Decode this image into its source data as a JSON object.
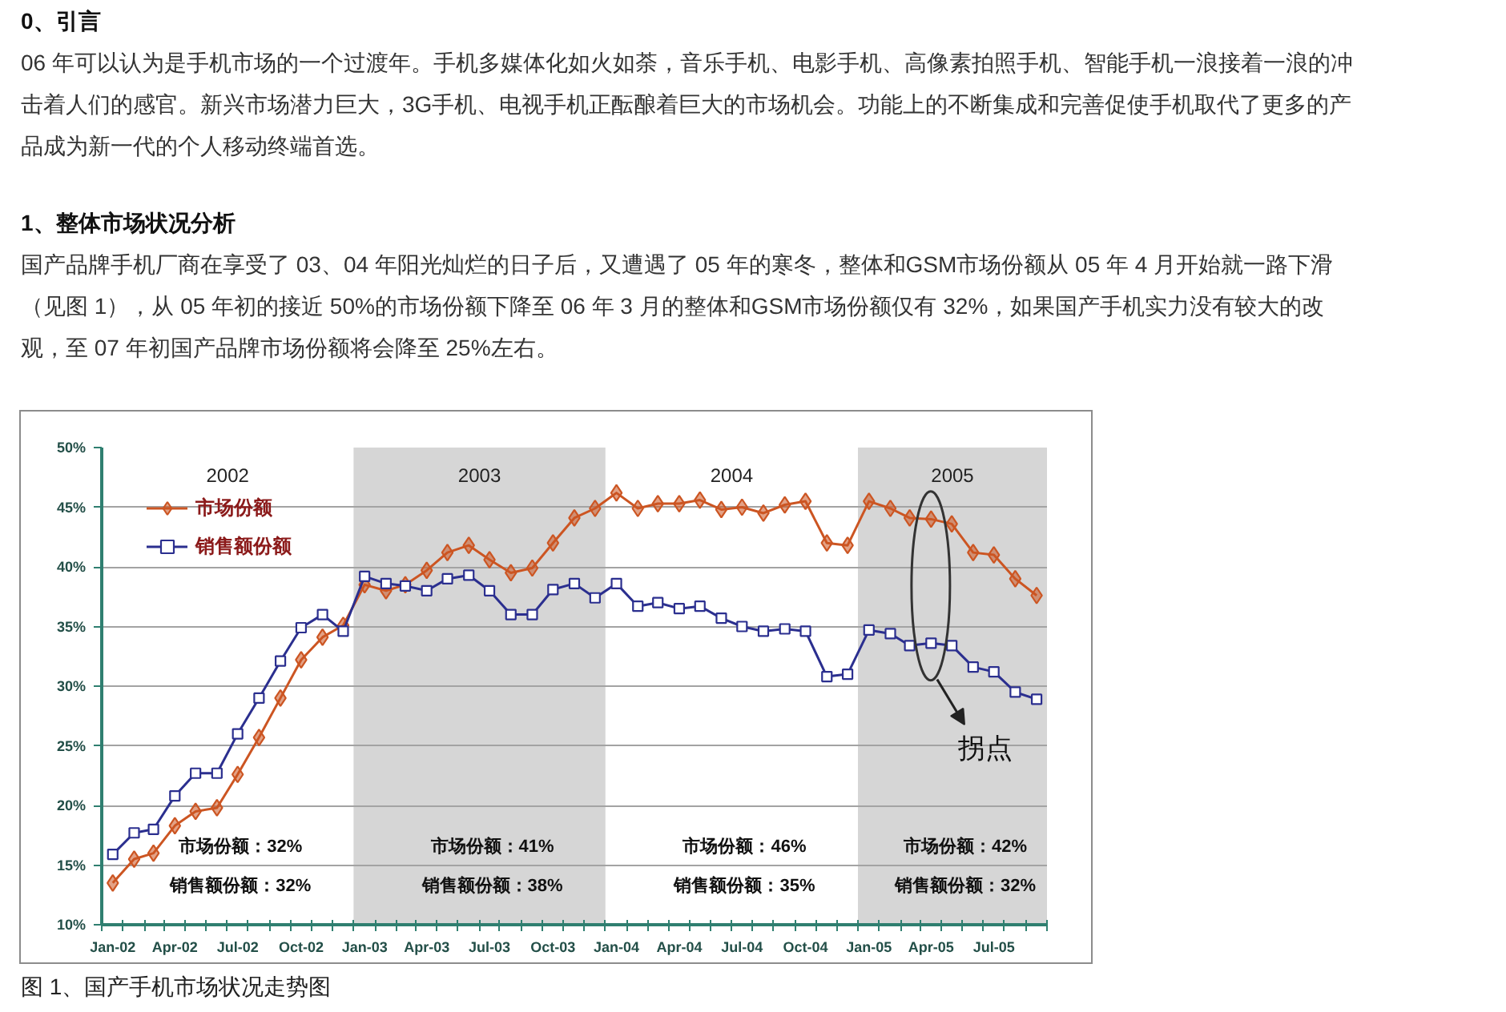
{
  "chart_data": {
    "type": "line",
    "title": "图 1、国产手机市场状况走势图",
    "annotations": [
      "0、引言",
      "06 年可以认为是手机市场的一个过渡年。手机多媒体化如火如荼，音乐手机、电影手机、高像素拍照手机、智能手机一浪接着一浪的冲击着人们的感官。新兴市场潜力巨大，3G手机、电视手机正酝酿着巨大的市场机会。功能上的不断集成和完善促使手机取代了更多的产品成为新一代的个人移动终端首选。",
      "1、整体市场状况分析",
      "国产品牌手机厂商在享受了 03、04 年阳光灿烂的日子后，又遭遇了 05 年的寒冬，整体和GSM市场份额从 05 年 4 月开始就一路下滑（见图 1），从 05 年初的接近 50%的市场份额下降至 06 年 3 月的整体和GSM市场份额仅有 32%，如果国产手机实力没有较大的改观，至 07 年初国产品牌市场份额将会降至 25%左右。",
      "拐点",
      "2002",
      "2004",
      "市场份额：32%",
      "销售额份额：32%",
      "市场份额：41%",
      "销售额份额：38%",
      "市场份额：46%",
      "销售额份额：35%",
      "市场份额：42%",
      "销售额份额：32%"
    ],
    "x": [
      "2002-01",
      "2002-02",
      "2002-03",
      "2002-04",
      "2002-05",
      "2002-06",
      "2002-07",
      "2002-08",
      "2002-09",
      "2002-10",
      "2002-11",
      "2002-12",
      "2003-01",
      "2003-02",
      "2003-03",
      "2003-04",
      "2003-05",
      "2003-06",
      "2003-07",
      "2003-08",
      "2003-09",
      "2003-10",
      "2003-11",
      "2003-12",
      "2004-01",
      "2004-02",
      "2004-03",
      "2004-04",
      "2004-05",
      "2004-06",
      "2004-07",
      "2004-08",
      "2004-09",
      "2004-10",
      "2004-11",
      "2004-12",
      "2005-01",
      "2005-02",
      "2005-03",
      "2005-04",
      "2005-05",
      "2005-06",
      "2005-07",
      "2005-08",
      "2005-09"
    ],
    "xlim": [
      "2001-12-16",
      "2005-09-16"
    ],
    "xticks": [
      {
        "value": "2002-01",
        "label": "Jan-02"
      },
      {
        "value": "2002-04",
        "label": "Apr-02"
      },
      {
        "value": "2002-07",
        "label": "Jul-02"
      },
      {
        "value": "2002-10",
        "label": "Oct-02"
      },
      {
        "value": "2003-01",
        "label": "Jan-03"
      },
      {
        "value": "2003-04",
        "label": "Apr-03"
      },
      {
        "value": "2003-07",
        "label": "Jul-03"
      },
      {
        "value": "2003-10",
        "label": "Oct-03"
      },
      {
        "value": "2004-01",
        "label": "Jan-04"
      },
      {
        "value": "2004-04",
        "label": "Apr-04"
      },
      {
        "value": "2004-07",
        "label": "Jul-04"
      },
      {
        "value": "2004-10",
        "label": "Oct-04"
      },
      {
        "value": "2005-01",
        "label": "Jan-05"
      },
      {
        "value": "2005-04",
        "label": "Apr-05"
      },
      {
        "value": "2005-07",
        "label": "Jul-05"
      },
      {
        "value": "2001-12-16",
        "label": null
      },
      {
        "value": "2002-01-16",
        "label": null
      },
      {
        "value": "2002-02-16",
        "label": null
      },
      {
        "value": "2002-03-16",
        "label": null
      },
      {
        "value": "2002-04-16",
        "label": null
      },
      {
        "value": "2002-05-16",
        "label": null
      },
      {
        "value": "2002-06-16",
        "label": null
      },
      {
        "value": "2002-07-16",
        "label": null
      },
      {
        "value": "2002-08-16",
        "label": null
      },
      {
        "value": "2002-09-16",
        "label": null
      },
      {
        "value": "2002-10-16",
        "label": null
      },
      {
        "value": "2002-11-16",
        "label": null
      },
      {
        "value": "2002-12-16",
        "label": null
      },
      {
        "value": "2003-01-16",
        "label": null
      },
      {
        "value": "2003-02-16",
        "label": null
      },
      {
        "value": "2003-03-16",
        "label": null
      },
      {
        "value": "2003-04-16",
        "label": null
      },
      {
        "value": "2003-05-16",
        "label": null
      },
      {
        "value": "2003-06-16",
        "label": null
      },
      {
        "value": "2003-07-16",
        "label": null
      },
      {
        "value": "2003-08-16",
        "label": null
      },
      {
        "value": "2003-09-16",
        "label": null
      },
      {
        "value": "2003-10-16",
        "label": null
      },
      {
        "value": "2003-11-16",
        "label": null
      },
      {
        "value": "2003-12-16",
        "label": null
      },
      {
        "value": "2004-01-16",
        "label": null
      },
      {
        "value": "2004-02-16",
        "label": null
      },
      {
        "value": "2004-03-16",
        "label": null
      },
      {
        "value": "2004-04-16",
        "label": null
      },
      {
        "value": "2004-05-16",
        "label": null
      },
      {
        "value": "2004-06-16",
        "label": null
      },
      {
        "value": "2004-07-16",
        "label": null
      },
      {
        "value": "2004-08-16",
        "label": null
      },
      {
        "value": "2004-09-16",
        "label": null
      },
      {
        "value": "2004-10-16",
        "label": null
      },
      {
        "value": "2004-11-16",
        "label": null
      },
      {
        "value": "2004-12-16",
        "label": null
      },
      {
        "value": "2005-01-16",
        "label": null
      },
      {
        "value": "2005-02-16",
        "label": null
      },
      {
        "value": "2005-03-16",
        "label": null
      },
      {
        "value": "2005-04-16",
        "label": null
      },
      {
        "value": "2005-05-16",
        "label": null
      },
      {
        "value": "2005-06-16",
        "label": null
      },
      {
        "value": "2005-07-16",
        "label": null
      },
      {
        "value": "2005-08-16",
        "label": null
      },
      {
        "value": "2005-09-16",
        "label": null
      }
    ],
    "ylim": [
      10,
      50
    ],
    "yticks": [
      {
        "value": 10,
        "label": "10%"
      },
      {
        "value": 15,
        "label": "15%"
      },
      {
        "value": 20,
        "label": "20%"
      },
      {
        "value": 25,
        "label": "25%"
      },
      {
        "value": 30,
        "label": "30%"
      },
      {
        "value": 35,
        "label": "35%"
      },
      {
        "value": 40,
        "label": "40%"
      },
      {
        "value": 45,
        "label": "45%"
      },
      {
        "value": 50,
        "label": "50%"
      }
    ],
    "bands": [
      {
        "axis": "x",
        "from": "2002-12-16",
        "to": "2003-12-16",
        "label": "2003",
        "color": "#d6d6d6"
      },
      {
        "axis": "x",
        "from": "2004-12-16",
        "to": "2005-09-16",
        "label": "2005",
        "color": "#d6d6d6"
      }
    ],
    "series": [
      {
        "name": "市场份额",
        "color": "#cc5522",
        "marker": "diamond",
        "values": [
          13.5,
          15.5,
          16.0,
          18.3,
          19.5,
          19.8,
          22.6,
          25.7,
          29.0,
          32.2,
          34.1,
          35.1,
          38.5,
          38.0,
          38.5,
          39.7,
          41.2,
          41.8,
          40.6,
          39.5,
          39.9,
          42.0,
          44.1,
          44.9,
          46.2,
          44.9,
          45.3,
          45.3,
          45.6,
          44.8,
          45.0,
          44.5,
          45.2,
          45.5,
          42.0,
          41.8,
          45.5,
          44.9,
          44.1,
          44.0,
          43.6,
          41.2,
          41.0,
          39.0,
          37.6
        ]
      },
      {
        "name": "销售额份额",
        "color": "#2b2f8f",
        "marker": "square",
        "values": [
          15.9,
          17.7,
          18.0,
          20.8,
          22.7,
          22.7,
          26.0,
          29.0,
          32.1,
          34.9,
          36.0,
          34.6,
          39.2,
          38.6,
          38.4,
          38.0,
          39.0,
          39.3,
          38.0,
          36.0,
          36.0,
          38.1,
          38.6,
          37.4,
          38.6,
          36.7,
          37.0,
          36.5,
          36.7,
          35.7,
          35.0,
          34.6,
          34.8,
          34.6,
          30.8,
          31.0,
          34.7,
          34.4,
          33.4,
          33.6,
          33.4,
          31.6,
          31.2,
          29.5,
          28.9
        ]
      }
    ],
    "grid": "y",
    "legend": "top left"
  }
}
